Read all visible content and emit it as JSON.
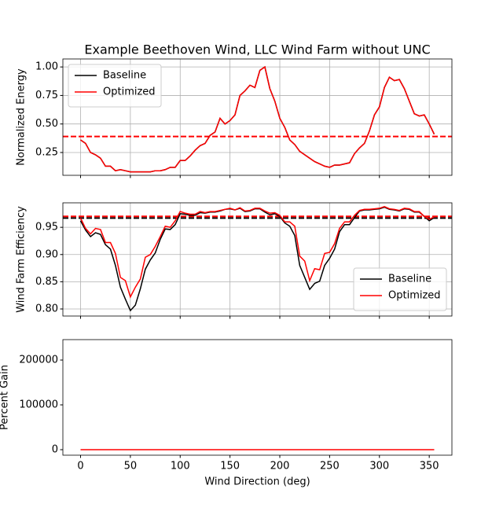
{
  "chart_data": [
    {
      "type": "line",
      "title": "Example Beethoven Wind, LLC Wind Farm without UNC",
      "ylabel": "Normalized Energy",
      "x": [
        0,
        5,
        10,
        15,
        20,
        25,
        30,
        35,
        40,
        45,
        50,
        55,
        60,
        65,
        70,
        75,
        80,
        85,
        90,
        95,
        100,
        105,
        110,
        115,
        120,
        125,
        130,
        135,
        140,
        145,
        150,
        155,
        160,
        165,
        170,
        175,
        180,
        185,
        190,
        195,
        200,
        205,
        210,
        215,
        220,
        225,
        230,
        235,
        240,
        245,
        250,
        255,
        260,
        265,
        270,
        275,
        280,
        285,
        290,
        295,
        300,
        305,
        310,
        315,
        320,
        325,
        330,
        335,
        340,
        345,
        350,
        355
      ],
      "series": [
        {
          "name": "Baseline",
          "color": "#000000",
          "values": [
            0.36,
            0.33,
            0.25,
            0.23,
            0.2,
            0.13,
            0.13,
            0.09,
            0.1,
            0.09,
            0.08,
            0.08,
            0.08,
            0.08,
            0.08,
            0.09,
            0.09,
            0.1,
            0.12,
            0.12,
            0.18,
            0.18,
            0.22,
            0.27,
            0.31,
            0.33,
            0.4,
            0.43,
            0.55,
            0.5,
            0.53,
            0.58,
            0.75,
            0.79,
            0.84,
            0.82,
            0.97,
            1.0,
            0.81,
            0.7,
            0.55,
            0.47,
            0.36,
            0.32,
            0.26,
            0.23,
            0.2,
            0.17,
            0.15,
            0.13,
            0.12,
            0.14,
            0.14,
            0.15,
            0.16,
            0.24,
            0.29,
            0.33,
            0.44,
            0.58,
            0.65,
            0.82,
            0.91,
            0.88,
            0.89,
            0.81,
            0.7,
            0.59,
            0.57,
            0.58,
            0.5,
            0.41
          ]
        },
        {
          "name": "Optimized",
          "color": "#ff0000",
          "values": [
            0.36,
            0.33,
            0.25,
            0.23,
            0.2,
            0.13,
            0.13,
            0.09,
            0.1,
            0.09,
            0.08,
            0.08,
            0.08,
            0.08,
            0.08,
            0.09,
            0.09,
            0.1,
            0.12,
            0.12,
            0.18,
            0.18,
            0.22,
            0.27,
            0.31,
            0.33,
            0.4,
            0.43,
            0.55,
            0.5,
            0.53,
            0.58,
            0.75,
            0.79,
            0.84,
            0.82,
            0.97,
            1.0,
            0.81,
            0.7,
            0.55,
            0.47,
            0.36,
            0.32,
            0.26,
            0.23,
            0.2,
            0.17,
            0.15,
            0.13,
            0.12,
            0.14,
            0.14,
            0.15,
            0.16,
            0.24,
            0.29,
            0.33,
            0.44,
            0.58,
            0.65,
            0.82,
            0.91,
            0.88,
            0.89,
            0.81,
            0.7,
            0.59,
            0.57,
            0.58,
            0.5,
            0.41
          ]
        }
      ],
      "hlines": [
        {
          "value": 0.39,
          "color": "#ff0000"
        }
      ],
      "xlim": [
        -17.75,
        372.75
      ],
      "xticks": [
        0,
        50,
        100,
        150,
        200,
        250,
        300,
        350
      ],
      "ylim": [
        0.05,
        1.07
      ],
      "yticks": [
        {
          "value": 0.25,
          "label": "0.25"
        },
        {
          "value": 0.5,
          "label": "0.50"
        },
        {
          "value": 0.75,
          "label": "0.75"
        },
        {
          "value": 1.0,
          "label": "1.00"
        }
      ],
      "grid": true,
      "legend": "upper left"
    },
    {
      "type": "line",
      "ylabel": "Wind Farm Efficiency",
      "x": [
        0,
        5,
        10,
        15,
        20,
        25,
        30,
        35,
        40,
        45,
        50,
        55,
        60,
        65,
        70,
        75,
        80,
        85,
        90,
        95,
        100,
        105,
        110,
        115,
        120,
        125,
        130,
        135,
        140,
        145,
        150,
        155,
        160,
        165,
        170,
        175,
        180,
        185,
        190,
        195,
        200,
        205,
        210,
        215,
        220,
        225,
        230,
        235,
        240,
        245,
        250,
        255,
        260,
        265,
        270,
        275,
        280,
        285,
        290,
        295,
        300,
        305,
        310,
        315,
        320,
        325,
        330,
        335,
        340,
        345,
        350,
        355
      ],
      "series": [
        {
          "name": "Baseline",
          "color": "#000000",
          "values": [
            0.962,
            0.945,
            0.933,
            0.94,
            0.937,
            0.918,
            0.91,
            0.88,
            0.84,
            0.818,
            0.797,
            0.807,
            0.837,
            0.873,
            0.89,
            0.903,
            0.928,
            0.947,
            0.946,
            0.955,
            0.975,
            0.974,
            0.972,
            0.972,
            0.977,
            0.976,
            0.978,
            0.978,
            0.98,
            0.983,
            0.984,
            0.982,
            0.985,
            0.979,
            0.98,
            0.984,
            0.984,
            0.978,
            0.973,
            0.975,
            0.97,
            0.958,
            0.952,
            0.935,
            0.88,
            0.858,
            0.836,
            0.847,
            0.851,
            0.88,
            0.893,
            0.91,
            0.942,
            0.955,
            0.955,
            0.968,
            0.98,
            0.982,
            0.982,
            0.983,
            0.984,
            0.987,
            0.983,
            0.982,
            0.98,
            0.984,
            0.983,
            0.978,
            0.978,
            0.97,
            0.962,
            0.968
          ]
        },
        {
          "name": "Optimized",
          "color": "#ff0000",
          "values": [
            0.967,
            0.948,
            0.938,
            0.948,
            0.946,
            0.922,
            0.922,
            0.902,
            0.858,
            0.852,
            0.822,
            0.84,
            0.855,
            0.895,
            0.9,
            0.915,
            0.933,
            0.952,
            0.95,
            0.962,
            0.979,
            0.976,
            0.974,
            0.974,
            0.979,
            0.977,
            0.979,
            0.979,
            0.981,
            0.983,
            0.985,
            0.982,
            0.986,
            0.98,
            0.981,
            0.985,
            0.985,
            0.98,
            0.976,
            0.977,
            0.972,
            0.96,
            0.96,
            0.952,
            0.897,
            0.888,
            0.852,
            0.874,
            0.872,
            0.902,
            0.904,
            0.92,
            0.948,
            0.96,
            0.96,
            0.972,
            0.981,
            0.983,
            0.983,
            0.984,
            0.985,
            0.988,
            0.984,
            0.983,
            0.981,
            0.985,
            0.984,
            0.979,
            0.979,
            0.97,
            0.965,
            0.969
          ]
        }
      ],
      "hlines": [
        {
          "value": 0.967,
          "color": "#000000"
        },
        {
          "value": 0.97,
          "color": "#ff0000"
        }
      ],
      "xlim": [
        -17.75,
        372.75
      ],
      "xticks": [
        0,
        50,
        100,
        150,
        200,
        250,
        300,
        350
      ],
      "ylim": [
        0.787,
        0.995
      ],
      "yticks": [
        {
          "value": 0.8,
          "label": "0.80"
        },
        {
          "value": 0.85,
          "label": "0.85"
        },
        {
          "value": 0.9,
          "label": "0.90"
        },
        {
          "value": 0.95,
          "label": "0.95"
        }
      ],
      "grid": true,
      "legend": "lower right"
    },
    {
      "type": "line",
      "ylabel": "Percent Gain",
      "xlabel": "Wind Direction (deg)",
      "x": [
        0,
        5,
        10,
        15,
        20,
        25,
        30,
        35,
        40,
        45,
        50,
        55,
        60,
        65,
        70,
        75,
        80,
        85,
        90,
        95,
        100,
        105,
        110,
        115,
        120,
        125,
        130,
        135,
        140,
        145,
        150,
        155,
        160,
        165,
        170,
        175,
        180,
        185,
        190,
        195,
        200,
        205,
        210,
        215,
        220,
        225,
        230,
        235,
        240,
        245,
        250,
        255,
        260,
        265,
        270,
        275,
        280,
        285,
        290,
        295,
        300,
        305,
        310,
        315,
        320,
        325,
        330,
        335,
        340,
        345,
        350,
        355
      ],
      "series": [
        {
          "color": "#ff0000",
          "values": [
            0,
            0,
            0,
            0,
            0,
            0,
            0,
            0,
            0,
            0,
            0,
            0,
            0,
            0,
            0,
            0,
            0,
            0,
            0,
            0,
            0,
            0,
            0,
            0,
            0,
            0,
            0,
            0,
            0,
            0,
            0,
            0,
            0,
            0,
            0,
            0,
            0,
            0,
            0,
            0,
            0,
            0,
            0,
            0,
            0,
            0,
            0,
            0,
            0,
            0,
            0,
            0,
            0,
            0,
            0,
            0,
            0,
            0,
            0,
            0,
            0,
            0,
            0,
            0,
            0,
            0,
            0,
            0,
            0,
            0,
            0,
            0
          ]
        }
      ],
      "xlim": [
        -17.75,
        372.75
      ],
      "xticks": [
        0,
        50,
        100,
        150,
        200,
        250,
        300,
        350
      ],
      "ylim": [
        -12280,
        245600
      ],
      "yticks": [
        0,
        100000,
        200000
      ],
      "grid": false
    }
  ]
}
